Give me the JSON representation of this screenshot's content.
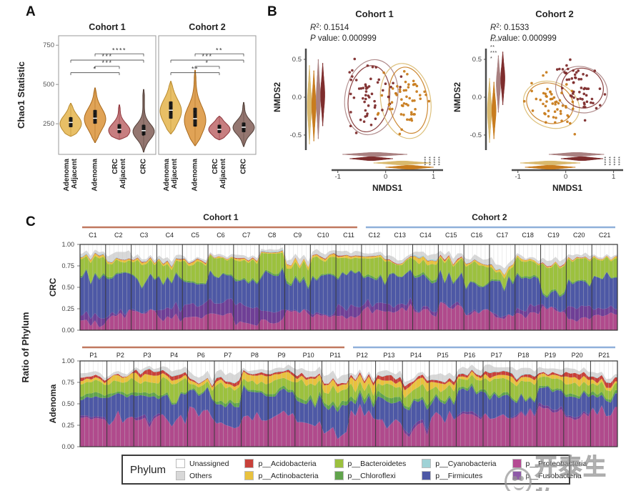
{
  "panels": {
    "a_label": "A",
    "b_label": "B",
    "c_label": "C"
  },
  "watermark": {
    "text": "开泰生物"
  },
  "legend": {
    "title": "Phylum",
    "entries": [
      {
        "label": "Unassigned",
        "color": "#ffffff"
      },
      {
        "label": "p__Acidobacteria",
        "color": "#c8413a"
      },
      {
        "label": "p__Bacteroidetes",
        "color": "#9cc13e"
      },
      {
        "label": "p__Cyanobacteria",
        "color": "#9fd2d6"
      },
      {
        "label": "p__Proteobacteria",
        "color": "#b44a92"
      },
      {
        "label": "Others",
        "color": "#d8d8d8"
      },
      {
        "label": "p__Actinobacteria",
        "color": "#e9c23e"
      },
      {
        "label": "p__Chloroflexi",
        "color": "#61a44c"
      },
      {
        "label": "p__Firmicutes",
        "color": "#4d58a5"
      },
      {
        "label": "p__Fusobacteria",
        "color": "#7a3d99"
      }
    ]
  },
  "chart_data": {
    "panel_a": {
      "type": "violin",
      "ylabel": "Chao1 Statistic",
      "yticks": [
        250,
        500,
        750
      ],
      "ylim": [
        55,
        810
      ],
      "categories": [
        [
          "Adenoma",
          "Adjacent"
        ],
        [
          "Adenoma"
        ],
        [
          "CRC",
          "Adjacent"
        ],
        [
          "CRC"
        ]
      ],
      "colors": [
        {
          "fill": "#e7bc5e",
          "stroke": "#b98a2f"
        },
        {
          "fill": "#de9e4d",
          "stroke": "#a96a1e"
        },
        {
          "fill": "#c47779",
          "stroke": "#90383e"
        },
        {
          "fill": "#8e6f68",
          "stroke": "#53413a"
        }
      ],
      "facets": [
        {
          "title": "Cohort 1",
          "violins": [
            {
              "min": 170,
              "max": 380,
              "mode": 250,
              "spread": 52,
              "q1": 228,
              "median": 258,
              "q3": 292
            },
            {
              "min": 130,
              "max": 478,
              "mode": 280,
              "spread": 68,
              "q1": 250,
              "median": 285,
              "q3": 338
            },
            {
              "min": 150,
              "max": 370,
              "mode": 207,
              "spread": 44,
              "q1": 190,
              "median": 214,
              "q3": 248
            },
            {
              "min": 70,
              "max": 468,
              "mode": 200,
              "spread": 48,
              "q1": 176,
              "median": 206,
              "q3": 244
            }
          ],
          "significance": [
            {
              "a": 0,
              "b": 2,
              "stars": "*",
              "y": 575
            },
            {
              "a": 1,
              "b": 2,
              "stars": "***",
              "y": 615
            },
            {
              "a": 0,
              "b": 3,
              "stars": "***",
              "y": 655
            },
            {
              "a": 1,
              "b": 3,
              "stars": "****",
              "y": 695
            }
          ]
        },
        {
          "title": "Cohort 2",
          "violins": [
            {
              "min": 185,
              "max": 520,
              "mode": 330,
              "spread": 75,
              "q1": 282,
              "median": 336,
              "q3": 392
            },
            {
              "min": 110,
              "max": 590,
              "mode": 272,
              "spread": 88,
              "q1": 232,
              "median": 282,
              "q3": 352
            },
            {
              "min": 148,
              "max": 298,
              "mode": 214,
              "spread": 38,
              "q1": 192,
              "median": 214,
              "q3": 244
            },
            {
              "min": 105,
              "max": 385,
              "mode": 226,
              "spread": 44,
              "q1": 196,
              "median": 228,
              "q3": 258
            }
          ],
          "significance": [
            {
              "a": 0,
              "b": 2,
              "stars": "**",
              "y": 575
            },
            {
              "a": 1,
              "b": 2,
              "stars": "*",
              "y": 615
            },
            {
              "a": 0,
              "b": 3,
              "stars": "***",
              "y": 655
            },
            {
              "a": 1,
              "b": 3,
              "stars": "**",
              "y": 695
            }
          ]
        }
      ]
    },
    "panel_b": {
      "type": "scatter",
      "xlabel": "NMDS1",
      "ylabel": "NMDS2",
      "xticks": [
        "-1",
        "0",
        "1"
      ],
      "yticks": [
        "0.5",
        "0.0",
        "-0.5"
      ],
      "r2_prefix": "R",
      "r2_sup": "2",
      "p_prefix": "P",
      "colors": {
        "maroon": "#7e2d2d",
        "gold": "#c87c1e",
        "maroonLight": "#a98080",
        "goldLight": "#d9b96d"
      },
      "subplots": [
        {
          "title": "Cohort 1",
          "r2": ": 0.1514",
          "p": " value: 0.000999",
          "seed": 3,
          "clusters": [
            {
              "color": "maroon",
              "cx": -0.33,
              "cy": 0.03,
              "sx": 0.27,
              "sy": 0.2,
              "slope": 0,
              "n": 55
            },
            {
              "color": "gold",
              "cx": 0.44,
              "cy": -0.03,
              "sx": 0.25,
              "sy": 0.2,
              "slope": 0,
              "n": 55
            }
          ],
          "ellipses": [
            {
              "color": "maroonLight",
              "cx": -0.3,
              "cy": 0.0,
              "rx": 0.55,
              "ry": 0.5,
              "rot": 10
            },
            {
              "color": "maroon",
              "cx": -0.35,
              "cy": -0.02,
              "rx": 0.43,
              "ry": 0.44,
              "rot": 8
            },
            {
              "color": "goldLight",
              "cx": 0.42,
              "cy": -0.05,
              "rx": 0.52,
              "ry": 0.5,
              "rot": -10
            },
            {
              "color": "gold",
              "cx": 0.47,
              "cy": -0.04,
              "rx": 0.4,
              "ry": 0.44,
              "rot": -8
            }
          ],
          "left_violins": [
            {
              "color": "goldLight",
              "lo": -0.62,
              "hi": 0.42
            },
            {
              "color": "gold",
              "lo": -0.58,
              "hi": 0.35
            },
            {
              "color": "maroonLight",
              "lo": -0.55,
              "hi": 0.5
            },
            {
              "color": "maroon",
              "lo": -0.38,
              "hi": 0.45
            }
          ],
          "bottom_violins": [
            {
              "color": "maroonLight",
              "lo": -0.9,
              "hi": 0.45
            },
            {
              "color": "maroon",
              "lo": -0.75,
              "hi": 0.15
            },
            {
              "color": "goldLight",
              "lo": -0.25,
              "hi": 0.95
            },
            {
              "color": "gold",
              "lo": 0.0,
              "hi": 1.0
            }
          ],
          "left_stars": [],
          "bottom_stars": [
            "****",
            "****",
            "****",
            "****"
          ]
        },
        {
          "title": "Cohort 2",
          "r2": ": 0.1533",
          "p": " value: 0.000999",
          "seed": 9,
          "clusters": [
            {
              "color": "gold",
              "cx": -0.33,
              "cy": -0.08,
              "sx": 0.27,
              "sy": 0.15,
              "slope": -0.3,
              "n": 55
            },
            {
              "color": "maroon",
              "cx": 0.33,
              "cy": 0.12,
              "sx": 0.23,
              "sy": 0.15,
              "slope": -0.3,
              "n": 55
            }
          ],
          "ellipses": [
            {
              "color": "goldLight",
              "cx": -0.3,
              "cy": -0.1,
              "rx": 0.6,
              "ry": 0.3,
              "rot": 22
            },
            {
              "color": "gold",
              "cx": -0.33,
              "cy": -0.08,
              "rx": 0.5,
              "ry": 0.26,
              "rot": 22
            },
            {
              "color": "maroonLight",
              "cx": 0.33,
              "cy": 0.1,
              "rx": 0.55,
              "ry": 0.3,
              "rot": 22
            },
            {
              "color": "maroon",
              "cx": 0.35,
              "cy": 0.12,
              "rx": 0.44,
              "ry": 0.26,
              "rot": 22
            }
          ],
          "left_violins": [
            {
              "color": "goldLight",
              "lo": -0.6,
              "hi": 0.25
            },
            {
              "color": "gold",
              "lo": -0.55,
              "hi": 0.2
            },
            {
              "color": "maroonLight",
              "lo": -0.2,
              "hi": 0.55
            },
            {
              "color": "maroon",
              "lo": -0.1,
              "hi": 0.6
            }
          ],
          "bottom_violins": [
            {
              "color": "maroonLight",
              "lo": -0.35,
              "hi": 0.8
            },
            {
              "color": "maroon",
              "lo": -0.1,
              "hi": 0.78
            },
            {
              "color": "goldLight",
              "lo": -0.95,
              "hi": 0.3
            },
            {
              "color": "gold",
              "lo": -0.85,
              "hi": 0.2
            }
          ],
          "left_stars": [
            "****",
            "**",
            "***",
            "*"
          ],
          "bottom_stars": [
            "****",
            "****",
            "****",
            "****"
          ]
        }
      ]
    },
    "panel_c": {
      "type": "area",
      "ylabel": "Ratio of Phylum",
      "yticks": [
        "1.00",
        "0.75",
        "0.50",
        "0.25",
        "0.00"
      ],
      "cohort1_label": "Cohort 1",
      "cohort2_label": "Cohort 2",
      "cohort1_color": "#c0785f",
      "cohort2_color": "#8fb0da",
      "samples_per_group": 6,
      "rows": [
        {
          "label": "CRC",
          "seed": 7,
          "groups": [
            {
              "id": "C1",
              "cohort": 1
            },
            {
              "id": "C2",
              "cohort": 1
            },
            {
              "id": "C3",
              "cohort": 1
            },
            {
              "id": "C4",
              "cohort": 1
            },
            {
              "id": "C5",
              "cohort": 1
            },
            {
              "id": "C6",
              "cohort": 1
            },
            {
              "id": "C7",
              "cohort": 1
            },
            {
              "id": "C8",
              "cohort": 1
            },
            {
              "id": "C9",
              "cohort": 1
            },
            {
              "id": "C10",
              "cohort": 1
            },
            {
              "id": "C11",
              "cohort": 1
            },
            {
              "id": "C12",
              "cohort": 2
            },
            {
              "id": "C13",
              "cohort": 2
            },
            {
              "id": "C14",
              "cohort": 2
            },
            {
              "id": "C15",
              "cohort": 2
            },
            {
              "id": "C16",
              "cohort": 2
            },
            {
              "id": "C17",
              "cohort": 2
            },
            {
              "id": "C18",
              "cohort": 2
            },
            {
              "id": "C19",
              "cohort": 2
            },
            {
              "id": "C20",
              "cohort": 2
            },
            {
              "id": "C21",
              "cohort": 2
            }
          ],
          "series": [
            {
              "name": "p__Proteobacteria",
              "color": "#b04a8c",
              "mean": 0.16,
              "var": 0.1
            },
            {
              "name": "p__Fusobacteria",
              "color": "#6f3f96",
              "mean": 0.07,
              "var": 0.1,
              "spiky": true
            },
            {
              "name": "p__Firmicutes",
              "color": "#4d58a5",
              "mean": 0.33,
              "var": 0.1
            },
            {
              "name": "p__Chloroflexi",
              "color": "#61a44c",
              "mean": 0.015,
              "var": 0.015
            },
            {
              "name": "p__Bacteroidetes",
              "color": "#9cc13e",
              "mean": 0.18,
              "var": 0.08
            },
            {
              "name": "p__Actinobacteria",
              "color": "#e9c23e",
              "mean": 0.02,
              "var": 0.02
            },
            {
              "name": "p__Acidobacteria",
              "color": "#c8413a",
              "mean": 0.006,
              "var": 0.006
            },
            {
              "name": "p__Cyanobacteria",
              "color": "#9fd2d6",
              "mean": 0.004,
              "var": 0.008,
              "spiky": true
            },
            {
              "name": "Others",
              "color": "#d8d8d8",
              "mean": 0.035,
              "var": 0.03
            },
            {
              "name": "Unassigned",
              "color": "#ffffff",
              "mean": 0.12,
              "var": 0.08
            }
          ]
        },
        {
          "label": "Adenoma",
          "seed": 11,
          "groups": [
            {
              "id": "P1",
              "cohort": 1
            },
            {
              "id": "P2",
              "cohort": 1
            },
            {
              "id": "P3",
              "cohort": 1
            },
            {
              "id": "P4",
              "cohort": 1
            },
            {
              "id": "P6",
              "cohort": 1
            },
            {
              "id": "P7",
              "cohort": 1
            },
            {
              "id": "P8",
              "cohort": 1
            },
            {
              "id": "P9",
              "cohort": 1
            },
            {
              "id": "P10",
              "cohort": 1
            },
            {
              "id": "P11",
              "cohort": 1
            },
            {
              "id": "P12",
              "cohort": 2
            },
            {
              "id": "P13",
              "cohort": 2
            },
            {
              "id": "P14",
              "cohort": 2
            },
            {
              "id": "P15",
              "cohort": 2
            },
            {
              "id": "P16",
              "cohort": 2
            },
            {
              "id": "P17",
              "cohort": 2
            },
            {
              "id": "P18",
              "cohort": 2
            },
            {
              "id": "P19",
              "cohort": 2
            },
            {
              "id": "P20",
              "cohort": 2
            },
            {
              "id": "P21",
              "cohort": 2
            }
          ],
          "series": [
            {
              "name": "p__Proteobacteria",
              "color": "#b04a8c",
              "mean": 0.3,
              "var": 0.15
            },
            {
              "name": "p__Fusobacteria",
              "color": "#6f3f96",
              "mean": 0.015,
              "var": 0.02,
              "spiky": true
            },
            {
              "name": "p__Firmicutes",
              "color": "#4d58a5",
              "mean": 0.2,
              "var": 0.12
            },
            {
              "name": "p__Chloroflexi",
              "color": "#61a44c",
              "mean": 0.03,
              "var": 0.02
            },
            {
              "name": "p__Bacteroidetes",
              "color": "#9cc13e",
              "mean": 0.13,
              "var": 0.06
            },
            {
              "name": "p__Actinobacteria",
              "color": "#e9c23e",
              "mean": 0.055,
              "var": 0.05
            },
            {
              "name": "p__Acidobacteria",
              "color": "#c8413a",
              "mean": 0.03,
              "var": 0.03
            },
            {
              "name": "p__Cyanobacteria",
              "color": "#9fd2d6",
              "mean": 0.004,
              "var": 0.008,
              "spiky": true
            },
            {
              "name": "Others",
              "color": "#d8d8d8",
              "mean": 0.05,
              "var": 0.04
            },
            {
              "name": "Unassigned",
              "color": "#ffffff",
              "mean": 0.13,
              "var": 0.09
            }
          ]
        }
      ]
    }
  }
}
